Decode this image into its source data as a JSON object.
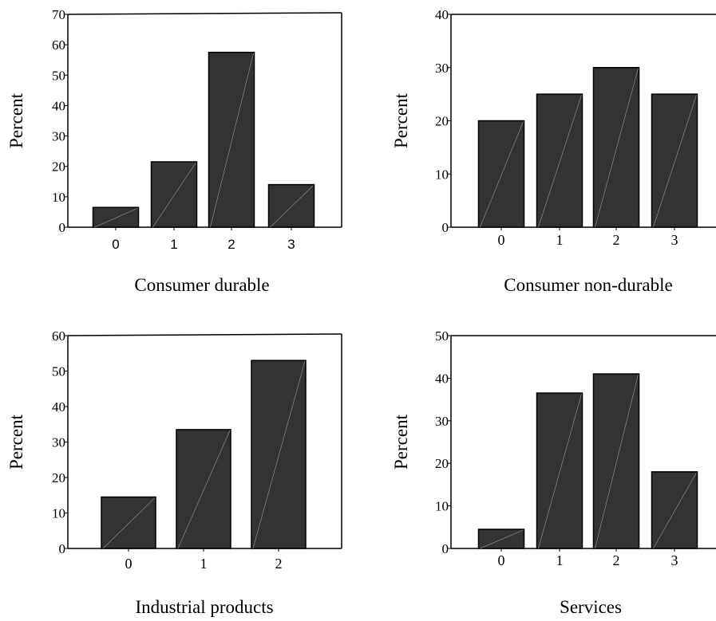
{
  "chart_data": [
    {
      "type": "bar",
      "title": "Consumer durable",
      "xlabel": "Consumer durable",
      "ylabel": "Percent",
      "categories": [
        "0",
        "1",
        "2",
        "3"
      ],
      "values": [
        6.5,
        21.5,
        57.5,
        14
      ],
      "ylim": [
        0,
        70
      ],
      "yticks": [
        "0",
        "10",
        "20",
        "30",
        "40",
        "50",
        "60",
        "70"
      ],
      "bar_color": "#333333",
      "tick_font": "sans"
    },
    {
      "type": "bar",
      "title": "Consumer non-durable",
      "xlabel": "Consumer non-durable",
      "ylabel": "Percent",
      "categories": [
        "0",
        "1",
        "2",
        "3"
      ],
      "values": [
        20,
        25,
        30,
        25
      ],
      "ylim": [
        0,
        40
      ],
      "yticks": [
        "0",
        "10",
        "20",
        "30",
        "40"
      ],
      "bar_color": "#333333",
      "tick_font": "serif"
    },
    {
      "type": "bar",
      "title": "Industrial products",
      "xlabel": "Industrial products",
      "ylabel": "Percent",
      "categories": [
        "0",
        "1",
        "2"
      ],
      "values": [
        14.5,
        33.5,
        53
      ],
      "ylim": [
        0,
        60
      ],
      "yticks": [
        "0",
        "10",
        "20",
        "30",
        "40",
        "50",
        "60"
      ],
      "bar_color": "#333333",
      "tick_font": "serif"
    },
    {
      "type": "bar",
      "title": "Services",
      "xlabel": "Services",
      "ylabel": "Percent",
      "categories": [
        "0",
        "1",
        "2",
        "3"
      ],
      "values": [
        4.5,
        36.5,
        41,
        18
      ],
      "ylim": [
        0,
        50
      ],
      "yticks": [
        "0",
        "10",
        "20",
        "30",
        "40",
        "50"
      ],
      "bar_color": "#333333",
      "tick_font": "serif"
    }
  ]
}
